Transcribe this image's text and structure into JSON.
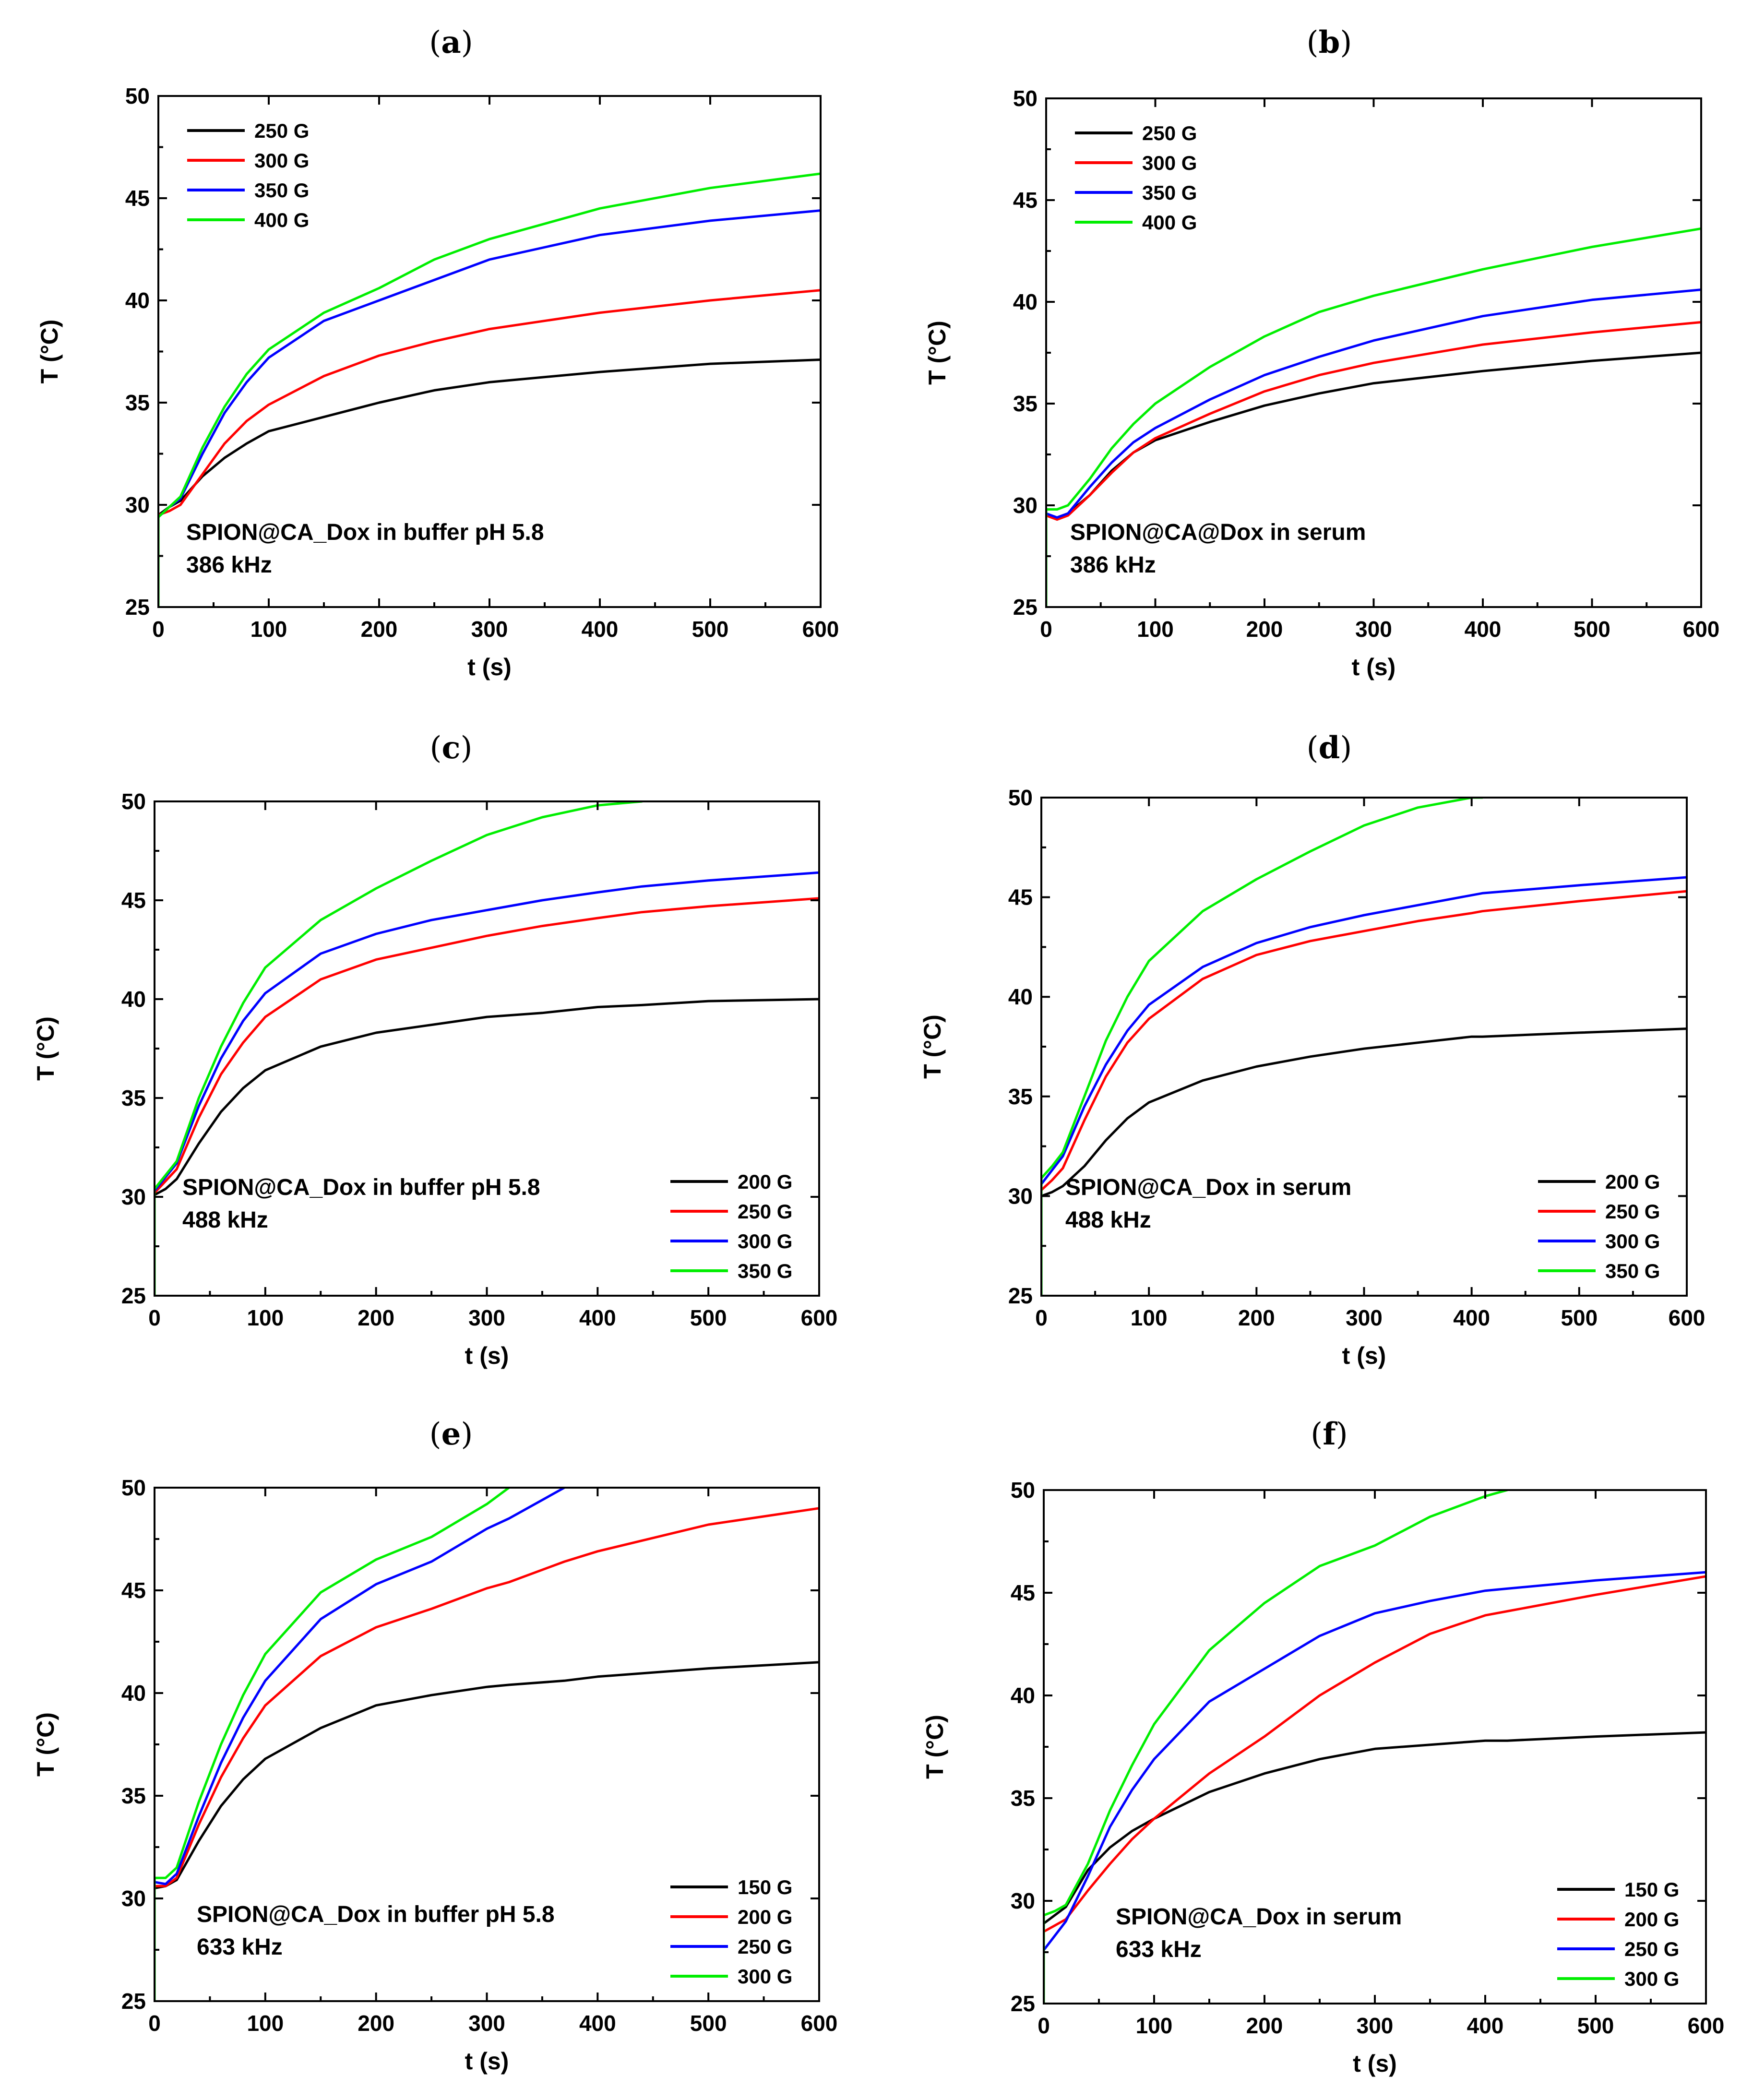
{
  "colors": {
    "black": "#000000",
    "red": "#ff0000",
    "blue": "#0000ff",
    "green": "#00ee00"
  },
  "chart_data": [
    {
      "type": "line",
      "panel": "a",
      "xlabel": "t (s)",
      "ylabel": "T (°C)",
      "xlim": [
        0,
        600
      ],
      "ylim": [
        25,
        50
      ],
      "xticks": [
        "0",
        "100",
        "200",
        "300",
        "400",
        "500",
        "600"
      ],
      "yticks": [
        "25",
        "30",
        "35",
        "40",
        "45",
        "50"
      ],
      "legend_position": "top-left",
      "annotation": [
        "SPION@CA_Dox in buffer pH 5.8",
        "386 kHz"
      ],
      "x": [
        0,
        10,
        20,
        40,
        60,
        80,
        100,
        150,
        200,
        250,
        300,
        400,
        500,
        600
      ],
      "series": [
        {
          "name": "250 G",
          "color": "#000000",
          "values": [
            29.5,
            29.9,
            30.2,
            31.4,
            32.3,
            33.0,
            33.6,
            34.3,
            35.0,
            35.6,
            36.0,
            36.5,
            36.9,
            37.1
          ]
        },
        {
          "name": "300 G",
          "color": "#ff0000",
          "values": [
            29.5,
            29.7,
            30.0,
            31.5,
            33.0,
            34.1,
            34.9,
            36.3,
            37.3,
            38.0,
            38.6,
            39.4,
            40.0,
            40.5
          ]
        },
        {
          "name": "350 G",
          "color": "#0000ff",
          "values": [
            29.4,
            29.9,
            30.3,
            32.5,
            34.5,
            36.0,
            37.2,
            39.0,
            40.0,
            41.0,
            42.0,
            43.2,
            43.9,
            44.4
          ]
        },
        {
          "name": "400 G",
          "color": "#00ee00",
          "values": [
            29.4,
            29.9,
            30.4,
            32.8,
            34.8,
            36.4,
            37.6,
            39.4,
            40.6,
            42.0,
            43.0,
            44.5,
            45.5,
            46.2
          ]
        }
      ]
    },
    {
      "type": "line",
      "panel": "b",
      "xlabel": "t (s)",
      "ylabel": "T (°C)",
      "xlim": [
        0,
        600
      ],
      "ylim": [
        25,
        50
      ],
      "xticks": [
        "0",
        "100",
        "200",
        "300",
        "400",
        "500",
        "600"
      ],
      "yticks": [
        "25",
        "30",
        "35",
        "40",
        "45",
        "50"
      ],
      "legend_position": "top-left",
      "annotation": [
        "SPION@CA@Dox in serum",
        "386 kHz"
      ],
      "x": [
        0,
        10,
        20,
        40,
        60,
        80,
        100,
        150,
        200,
        250,
        300,
        400,
        500,
        600
      ],
      "series": [
        {
          "name": "250 G",
          "color": "#000000",
          "values": [
            29.5,
            29.4,
            29.6,
            30.5,
            31.7,
            32.6,
            33.2,
            34.1,
            34.9,
            35.5,
            36.0,
            36.6,
            37.1,
            37.5
          ]
        },
        {
          "name": "300 G",
          "color": "#ff0000",
          "values": [
            29.5,
            29.3,
            29.5,
            30.5,
            31.6,
            32.6,
            33.3,
            34.5,
            35.6,
            36.4,
            37.0,
            37.9,
            38.5,
            39.0
          ]
        },
        {
          "name": "350 G",
          "color": "#0000ff",
          "values": [
            29.6,
            29.4,
            29.6,
            30.9,
            32.1,
            33.1,
            33.8,
            35.2,
            36.4,
            37.3,
            38.1,
            39.3,
            40.1,
            40.6
          ]
        },
        {
          "name": "400 G",
          "color": "#00ee00",
          "values": [
            29.8,
            29.8,
            30.0,
            31.3,
            32.8,
            34.0,
            35.0,
            36.8,
            38.3,
            39.5,
            40.3,
            41.6,
            42.7,
            43.6
          ]
        }
      ]
    },
    {
      "type": "line",
      "panel": "c",
      "xlabel": "t (s)",
      "ylabel": "T (°C)",
      "xlim": [
        0,
        600
      ],
      "ylim": [
        25,
        50
      ],
      "xticks": [
        "0",
        "100",
        "200",
        "300",
        "400",
        "500",
        "600"
      ],
      "yticks": [
        "25",
        "30",
        "35",
        "40",
        "45",
        "50"
      ],
      "legend_position": "bottom-right",
      "annotation": [
        "SPION@CA_Dox in buffer pH 5.8",
        "488 kHz"
      ],
      "x": [
        0,
        10,
        20,
        40,
        60,
        80,
        100,
        150,
        200,
        250,
        300,
        350,
        400,
        440,
        500,
        600
      ],
      "series": [
        {
          "name": "200 G",
          "color": "#000000",
          "values": [
            30.1,
            30.4,
            30.9,
            32.7,
            34.3,
            35.5,
            36.4,
            37.6,
            38.3,
            38.7,
            39.1,
            39.3,
            39.6,
            39.7,
            39.9,
            40.0
          ]
        },
        {
          "name": "250 G",
          "color": "#ff0000",
          "values": [
            30.2,
            30.8,
            31.4,
            34.0,
            36.2,
            37.8,
            39.1,
            41.0,
            42.0,
            42.6,
            43.2,
            43.7,
            44.1,
            44.4,
            44.7,
            45.1
          ]
        },
        {
          "name": "300 G",
          "color": "#0000ff",
          "values": [
            30.3,
            31.0,
            31.7,
            34.6,
            37.0,
            38.9,
            40.3,
            42.3,
            43.3,
            44.0,
            44.5,
            45.0,
            45.4,
            45.7,
            46.0,
            46.4
          ]
        },
        {
          "name": "350 G",
          "color": "#00ee00",
          "values": [
            30.4,
            31.1,
            31.8,
            35.0,
            37.6,
            39.8,
            41.6,
            44.0,
            45.6,
            47.0,
            48.3,
            49.2,
            49.8,
            50.0,
            null,
            null
          ]
        }
      ]
    },
    {
      "type": "line",
      "panel": "d",
      "xlabel": "t (s)",
      "ylabel": "T (°C)",
      "xlim": [
        0,
        600
      ],
      "ylim": [
        25,
        50
      ],
      "xticks": [
        "0",
        "100",
        "200",
        "300",
        "400",
        "500",
        "600"
      ],
      "yticks": [
        "25",
        "30",
        "35",
        "40",
        "45",
        "50"
      ],
      "legend_position": "bottom-right",
      "annotation": [
        "SPION@CA_Dox in serum",
        "488 kHz"
      ],
      "x": [
        0,
        10,
        20,
        40,
        60,
        80,
        100,
        150,
        200,
        250,
        300,
        350,
        400,
        410,
        500,
        600
      ],
      "series": [
        {
          "name": "200 G",
          "color": "#000000",
          "values": [
            30.0,
            30.2,
            30.5,
            31.5,
            32.8,
            33.9,
            34.7,
            35.8,
            36.5,
            37.0,
            37.4,
            37.7,
            38.0,
            38.0,
            38.2,
            38.4
          ]
        },
        {
          "name": "250 G",
          "color": "#ff0000",
          "values": [
            30.3,
            30.8,
            31.4,
            33.8,
            36.0,
            37.7,
            38.9,
            40.9,
            42.1,
            42.8,
            43.3,
            43.8,
            44.2,
            44.3,
            44.8,
            45.3
          ]
        },
        {
          "name": "300 G",
          "color": "#0000ff",
          "values": [
            30.6,
            31.3,
            32.0,
            34.5,
            36.6,
            38.3,
            39.6,
            41.5,
            42.7,
            43.5,
            44.1,
            44.6,
            45.1,
            45.2,
            45.6,
            46.0
          ]
        },
        {
          "name": "350 G",
          "color": "#00ee00",
          "values": [
            30.9,
            31.5,
            32.2,
            35.0,
            37.8,
            40.0,
            41.8,
            44.3,
            45.9,
            47.3,
            48.6,
            49.5,
            50.0,
            50.0,
            null,
            null
          ]
        }
      ]
    },
    {
      "type": "line",
      "panel": "e",
      "xlabel": "t (s)",
      "ylabel": "T (°C)",
      "xlim": [
        0,
        600
      ],
      "ylim": [
        25,
        50
      ],
      "xticks": [
        "0",
        "100",
        "200",
        "300",
        "400",
        "500",
        "600"
      ],
      "yticks": [
        "25",
        "30",
        "35",
        "40",
        "45",
        "50"
      ],
      "legend_position": "bottom-right",
      "annotation": [
        "SPION@CA_Dox in buffer pH 5.8",
        "633 kHz"
      ],
      "x": [
        0,
        10,
        20,
        40,
        60,
        80,
        100,
        150,
        200,
        250,
        300,
        320,
        370,
        400,
        500,
        600
      ],
      "series": [
        {
          "name": "150 G",
          "color": "#000000",
          "values": [
            30.5,
            30.6,
            30.9,
            32.8,
            34.5,
            35.8,
            36.8,
            38.3,
            39.4,
            39.9,
            40.3,
            40.4,
            40.6,
            40.8,
            41.2,
            41.5
          ]
        },
        {
          "name": "200 G",
          "color": "#ff0000",
          "values": [
            30.6,
            30.6,
            31.0,
            33.6,
            35.9,
            37.8,
            39.4,
            41.8,
            43.2,
            44.1,
            45.1,
            45.4,
            46.4,
            46.9,
            48.2,
            49.0
          ]
        },
        {
          "name": "250 G",
          "color": "#0000ff",
          "values": [
            30.8,
            30.7,
            31.2,
            34.0,
            36.6,
            38.8,
            40.6,
            43.6,
            45.3,
            46.4,
            48.0,
            48.5,
            50.0,
            null,
            null,
            null
          ]
        },
        {
          "name": "300 G",
          "color": "#00ee00",
          "values": [
            31.0,
            31.0,
            31.5,
            34.7,
            37.5,
            39.9,
            41.9,
            44.9,
            46.5,
            47.6,
            49.2,
            50.0,
            null,
            null,
            null,
            null
          ]
        }
      ]
    },
    {
      "type": "line",
      "panel": "f",
      "xlabel": "t (s)",
      "ylabel": "T (°C)",
      "xlim": [
        0,
        600
      ],
      "ylim": [
        25,
        50
      ],
      "xticks": [
        "0",
        "100",
        "200",
        "300",
        "400",
        "500",
        "600"
      ],
      "yticks": [
        "25",
        "30",
        "35",
        "40",
        "45",
        "50"
      ],
      "legend_position": "bottom-right",
      "annotation": [
        "SPION@CA_Dox in serum",
        "633 kHz"
      ],
      "x": [
        0,
        10,
        20,
        40,
        60,
        80,
        100,
        150,
        200,
        250,
        300,
        350,
        400,
        420,
        500,
        600
      ],
      "series": [
        {
          "name": "150 G",
          "color": "#000000",
          "values": [
            28.9,
            29.3,
            29.7,
            31.5,
            32.6,
            33.4,
            34.0,
            35.3,
            36.2,
            36.9,
            37.4,
            37.6,
            37.8,
            37.8,
            38.0,
            38.2
          ]
        },
        {
          "name": "200 G",
          "color": "#ff0000",
          "values": [
            28.5,
            28.8,
            29.1,
            30.5,
            31.8,
            33.0,
            34.0,
            36.2,
            38.0,
            40.0,
            41.6,
            43.0,
            43.9,
            44.1,
            44.9,
            45.8
          ]
        },
        {
          "name": "250 G",
          "color": "#0000ff",
          "values": [
            27.6,
            28.3,
            29.0,
            31.2,
            33.6,
            35.4,
            36.9,
            39.7,
            41.3,
            42.9,
            44.0,
            44.6,
            45.1,
            45.2,
            45.6,
            46.0
          ]
        },
        {
          "name": "300 G",
          "color": "#00ee00",
          "values": [
            29.3,
            29.5,
            29.8,
            31.8,
            34.4,
            36.6,
            38.6,
            42.2,
            44.5,
            46.3,
            47.3,
            48.7,
            49.7,
            50.0,
            null,
            null
          ]
        }
      ]
    }
  ]
}
